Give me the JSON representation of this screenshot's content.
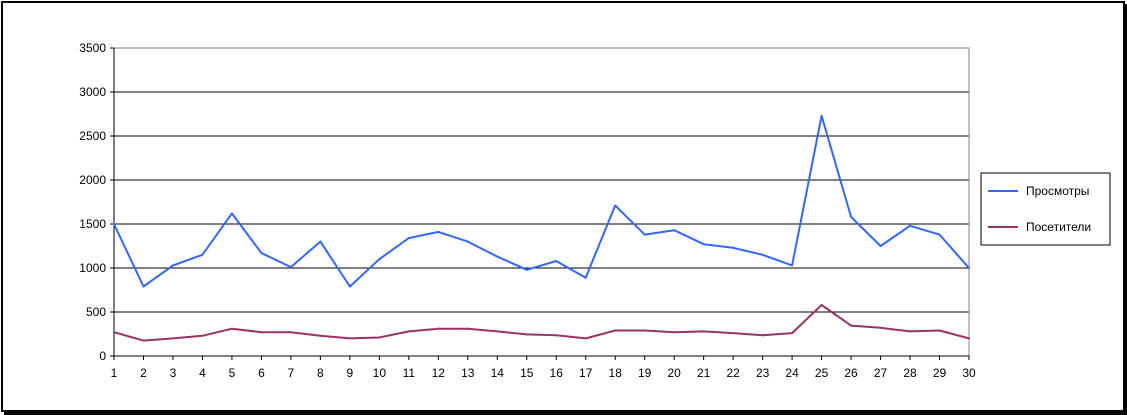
{
  "chart_data": {
    "type": "line",
    "title": "",
    "xlabel": "",
    "ylabel": "",
    "x": [
      1,
      2,
      3,
      4,
      5,
      6,
      7,
      8,
      9,
      10,
      11,
      12,
      13,
      14,
      15,
      16,
      17,
      18,
      19,
      20,
      21,
      22,
      23,
      24,
      25,
      26,
      27,
      28,
      29,
      30
    ],
    "ylim": [
      0,
      3500
    ],
    "yticks": [
      0,
      500,
      1000,
      1500,
      2000,
      2500,
      3000,
      3500
    ],
    "grid": "horizontal",
    "legend_position": "right",
    "series": [
      {
        "name": "Просмотры",
        "color": "#3366ff",
        "values": [
          1500,
          790,
          1030,
          1150,
          1620,
          1170,
          1010,
          1300,
          790,
          1100,
          1340,
          1410,
          1300,
          1130,
          980,
          1080,
          890,
          1710,
          1380,
          1430,
          1270,
          1230,
          1150,
          1030,
          2730,
          1580,
          1250,
          1480,
          1380,
          1000
        ]
      },
      {
        "name": "Посетители",
        "color": "#993366",
        "values": [
          270,
          175,
          200,
          230,
          310,
          270,
          270,
          230,
          200,
          210,
          280,
          310,
          310,
          280,
          245,
          235,
          200,
          290,
          290,
          270,
          280,
          260,
          235,
          260,
          580,
          345,
          320,
          280,
          290,
          200
        ]
      }
    ]
  }
}
